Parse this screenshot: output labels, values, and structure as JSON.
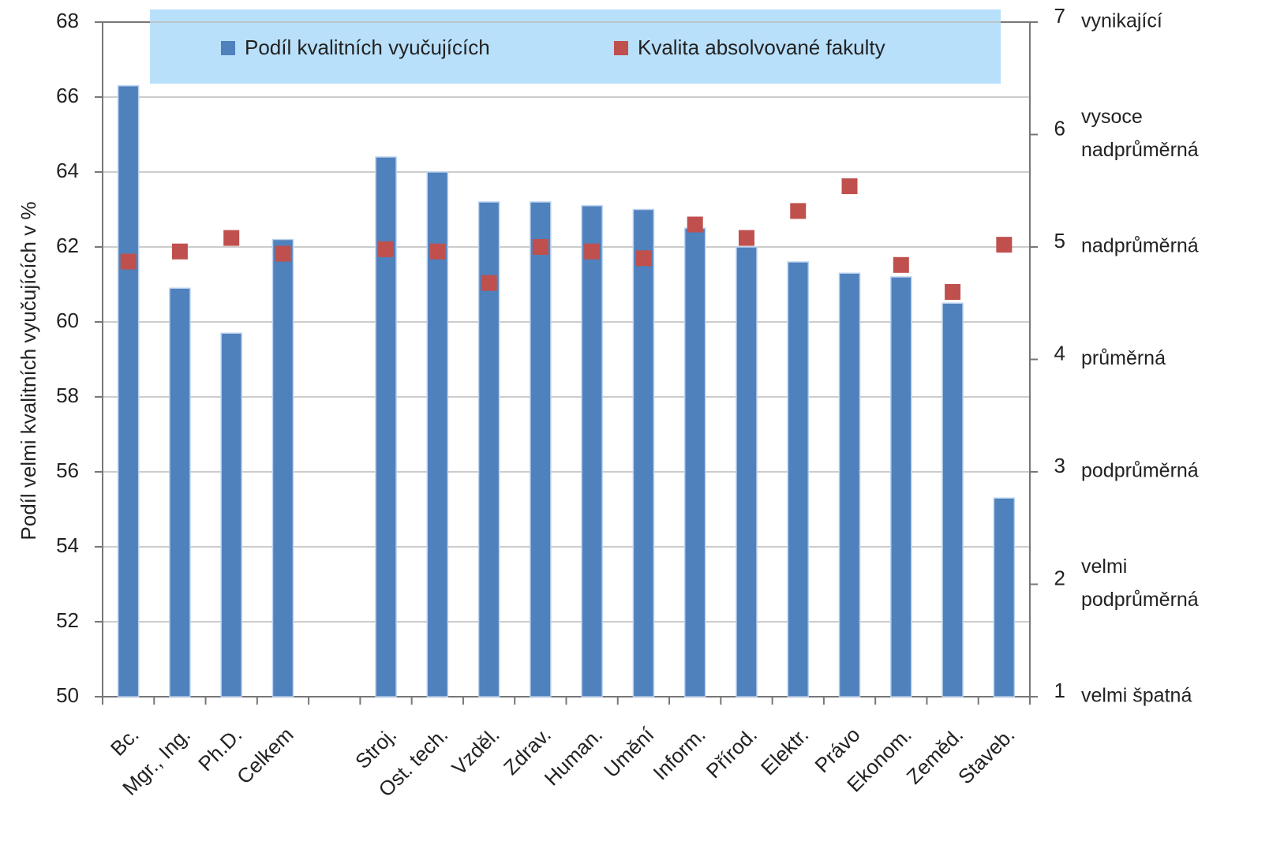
{
  "chart_data": {
    "type": "bar",
    "y_label": "Podíl velmi kvalitních vyučujících v %",
    "categories": [
      "Bc.",
      "Mgr., Ing.",
      "Ph.D.",
      "Celkem",
      null,
      "Stroj.",
      "Ost. tech.",
      "Vzděl.",
      "Zdrav.",
      "Human.",
      "Umění",
      "Inform.",
      "Přírod.",
      "Elektr.",
      "Právo",
      "Ekonom.",
      "Zeměd.",
      "Staveb."
    ],
    "series": [
      {
        "name": "Podíl kvalitních vyučujících",
        "type": "bar",
        "color": "#4f81bd",
        "values": [
          66.3,
          60.9,
          59.7,
          62.2,
          null,
          64.4,
          64.0,
          63.2,
          63.2,
          63.1,
          63.0,
          62.5,
          62.0,
          61.6,
          61.3,
          61.2,
          60.5,
          55.3
        ]
      },
      {
        "name": "Kvalita absolvované fakulty",
        "type": "scatter",
        "axis": "y2",
        "color": "#c0504d",
        "values": [
          4.87,
          4.96,
          5.08,
          4.94,
          null,
          4.98,
          4.96,
          4.68,
          5.0,
          4.96,
          4.9,
          5.2,
          5.08,
          5.32,
          5.54,
          4.84,
          4.6,
          5.02
        ]
      }
    ],
    "ylim": [
      50,
      68
    ],
    "yticks": [
      50,
      52,
      54,
      56,
      58,
      60,
      62,
      64,
      66,
      68
    ],
    "y2lim": [
      1,
      7
    ],
    "y2ticks": [
      1,
      2,
      3,
      4,
      5,
      6,
      7
    ],
    "y2_level_labels": [
      [
        "velmi špatná"
      ],
      [
        "velmi",
        "podprůměrná"
      ],
      [
        "podprůměrná"
      ],
      [
        "průměrná"
      ],
      [
        "nadprůměrná"
      ],
      [
        "vysoce",
        "nadprůměrná"
      ],
      [
        "vynikající"
      ]
    ],
    "grid": true,
    "legend": "top"
  }
}
